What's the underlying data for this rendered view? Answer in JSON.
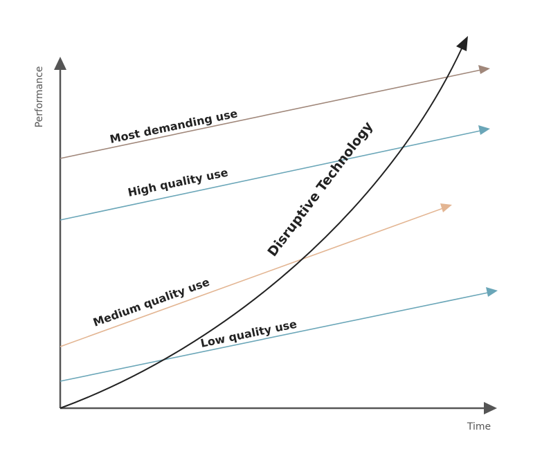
{
  "axes": {
    "y_title": "Performance",
    "x_title": "Time",
    "color": "#555555"
  },
  "trajectories": {
    "most_demanding": {
      "label": "Most demanding use",
      "color": "#a0877a"
    },
    "high_quality": {
      "label": "High quality use",
      "color": "#6aa6b8"
    },
    "medium_quality": {
      "label": "Medium quality use",
      "color": "#e3b592"
    },
    "low_quality": {
      "label": "Low quality use",
      "color": "#6aa6b8"
    }
  },
  "disruptive": {
    "label": "Disruptive Technology",
    "color": "#222222"
  }
}
